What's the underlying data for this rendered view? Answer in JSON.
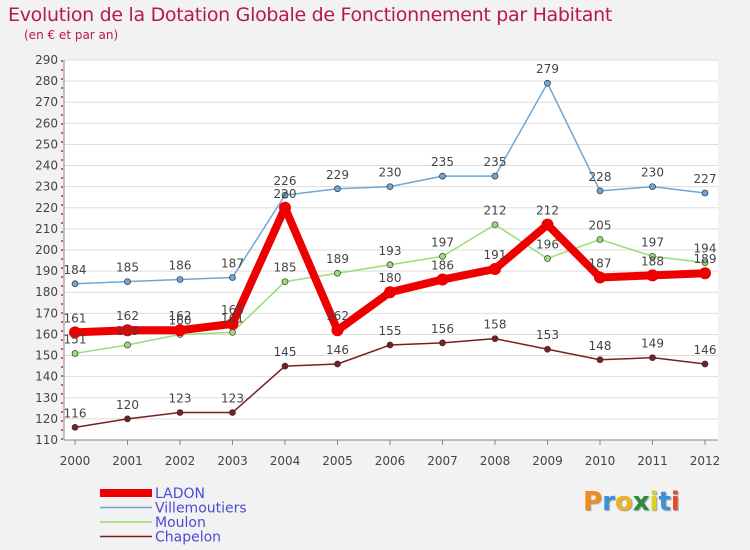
{
  "chart_data": {
    "type": "line",
    "title": "Evolution de la Dotation Globale de Fonctionnement par Habitant",
    "subtitle": "(en € et par an)",
    "xlabel": "",
    "ylabel": "",
    "ylim": [
      110,
      290
    ],
    "yticks": [
      110,
      120,
      130,
      140,
      150,
      160,
      170,
      180,
      190,
      200,
      210,
      220,
      230,
      240,
      250,
      260,
      270,
      280,
      290
    ],
    "categories": [
      "2000",
      "2001",
      "2002",
      "2003",
      "2004",
      "2005",
      "2006",
      "2007",
      "2008",
      "2009",
      "2010",
      "2011",
      "2012"
    ],
    "grid": "horizontal",
    "legend_position": "bottom-left",
    "series": [
      {
        "name": "Chapelon",
        "color": "#7a1f1f",
        "values": [
          116,
          120,
          123,
          123,
          145,
          146,
          155,
          156,
          158,
          153,
          148,
          149,
          146
        ]
      },
      {
        "name": "Moulon",
        "color": "#99dd77",
        "values": [
          151,
          155,
          160,
          161,
          185,
          189,
          193,
          197,
          212,
          196,
          205,
          197,
          194
        ]
      },
      {
        "name": "Villemoutiers",
        "color": "#6fa6d6",
        "values": [
          184,
          185,
          186,
          187,
          226,
          229,
          230,
          235,
          235,
          279,
          228,
          230,
          227
        ]
      },
      {
        "name": "LADON",
        "color": "#ee0000",
        "values": [
          161,
          162,
          162,
          165,
          220,
          162,
          180,
          186,
          191,
          212,
          187,
          188,
          189
        ]
      }
    ],
    "legend": [
      "LADON",
      "Villemoutiers",
      "Moulon",
      "Chapelon"
    ]
  },
  "logo": {
    "letters": [
      "P",
      "r",
      "o",
      "x",
      "i",
      "t",
      "i"
    ],
    "colors": [
      "#f28a1e",
      "#3c8fd8",
      "#f0b21e",
      "#2b8a3e",
      "#d8d022",
      "#3c8fd8",
      "#e84a2b"
    ]
  }
}
